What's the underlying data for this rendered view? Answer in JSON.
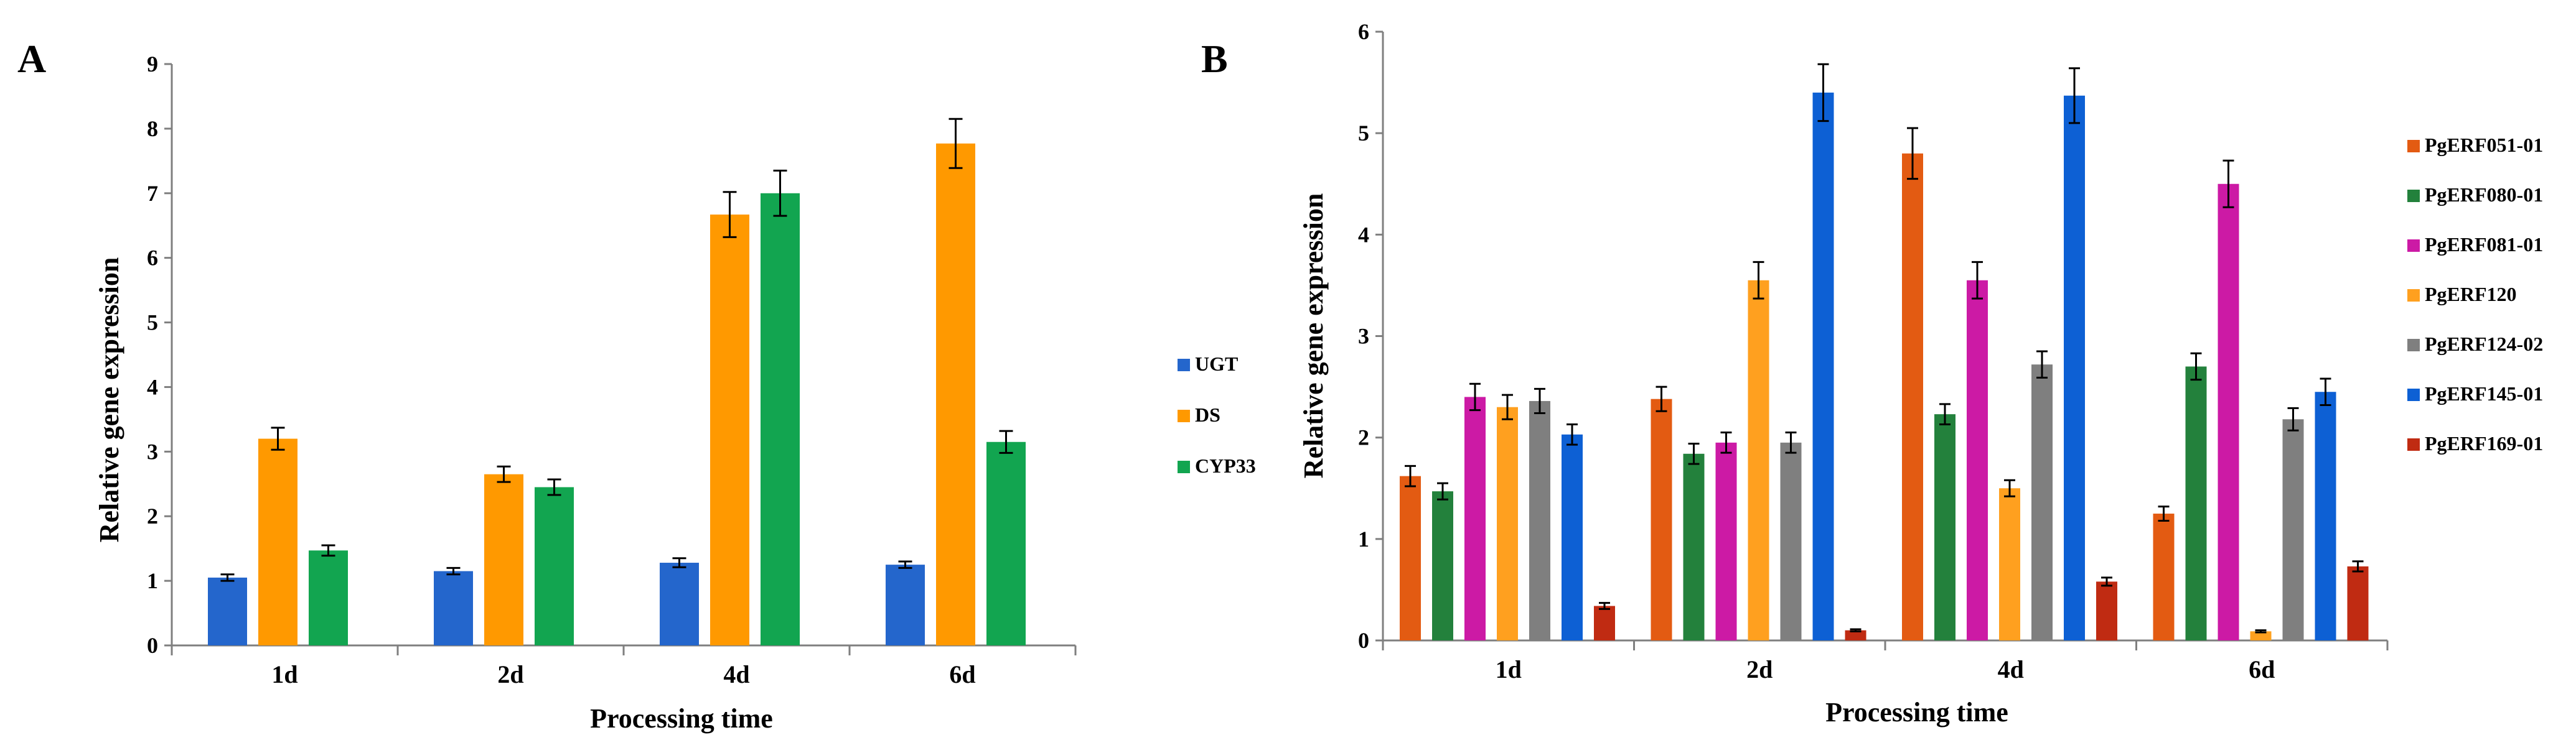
{
  "chart_data": [
    {
      "panel": "A",
      "type": "bar",
      "title": "",
      "xlabel": "Processing time",
      "ylabel": "Relative gene expression",
      "categories": [
        "1d",
        "2d",
        "4d",
        "6d"
      ],
      "ylim": [
        0,
        9
      ],
      "yticks": [
        0,
        1,
        2,
        3,
        4,
        5,
        6,
        7,
        8,
        9
      ],
      "legend_position": "right",
      "grid": false,
      "series": [
        {
          "name": "UGT",
          "color": "#2466cc",
          "values": [
            1.05,
            1.15,
            1.28,
            1.25
          ],
          "errors": [
            0.05,
            0.05,
            0.07,
            0.05
          ]
        },
        {
          "name": "DS",
          "color": "#ff9900",
          "values": [
            3.2,
            2.65,
            6.67,
            7.77
          ],
          "errors": [
            0.17,
            0.12,
            0.35,
            0.38
          ]
        },
        {
          "name": "CYP33",
          "color": "#12a550",
          "values": [
            1.47,
            2.45,
            7.0,
            3.15
          ],
          "errors": [
            0.08,
            0.12,
            0.35,
            0.17
          ]
        }
      ]
    },
    {
      "panel": "B",
      "type": "bar",
      "title": "",
      "xlabel": "Processing time",
      "ylabel": "Relative gene expression",
      "categories": [
        "1d",
        "2d",
        "4d",
        "6d"
      ],
      "ylim": [
        0,
        6
      ],
      "yticks": [
        0,
        1,
        2,
        3,
        4,
        5,
        6
      ],
      "legend_position": "right",
      "grid": false,
      "series": [
        {
          "name": "PgERF051-01",
          "color": "#e35b12",
          "values": [
            1.62,
            2.38,
            4.8,
            1.25
          ],
          "errors": [
            0.1,
            0.12,
            0.25,
            0.07
          ]
        },
        {
          "name": "PgERF080-01",
          "color": "#23813c",
          "values": [
            1.47,
            1.84,
            2.23,
            2.7
          ],
          "errors": [
            0.08,
            0.1,
            0.1,
            0.13
          ]
        },
        {
          "name": "PgERF081-01",
          "color": "#cc1aa5",
          "values": [
            2.4,
            1.95,
            3.55,
            4.5
          ],
          "errors": [
            0.13,
            0.1,
            0.18,
            0.23
          ]
        },
        {
          "name": "PgERF120",
          "color": "#ffa01f",
          "values": [
            2.3,
            3.55,
            1.5,
            0.09
          ],
          "errors": [
            0.12,
            0.18,
            0.08,
            0.01
          ]
        },
        {
          "name": "PgERF124-02",
          "color": "#7f7f7f",
          "values": [
            2.36,
            1.95,
            2.72,
            2.18
          ],
          "errors": [
            0.12,
            0.1,
            0.13,
            0.11
          ]
        },
        {
          "name": "PgERF145-01",
          "color": "#0d60d4",
          "values": [
            2.03,
            5.4,
            5.37,
            2.45
          ],
          "errors": [
            0.1,
            0.28,
            0.27,
            0.13
          ]
        },
        {
          "name": "PgERF169-01",
          "color": "#c02b12",
          "values": [
            0.34,
            0.1,
            0.58,
            0.73
          ],
          "errors": [
            0.03,
            0.01,
            0.04,
            0.05
          ]
        }
      ]
    }
  ]
}
